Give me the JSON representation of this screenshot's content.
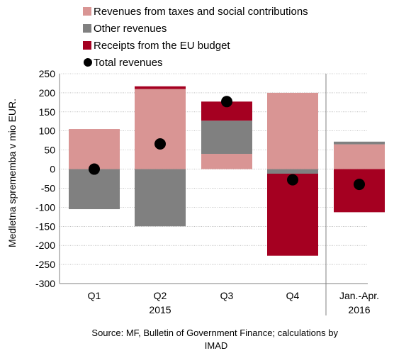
{
  "chart_data": {
    "type": "bar",
    "stacked": true,
    "categories": [
      "Q1",
      "Q2",
      "Q3",
      "Q4",
      "Jan.-Apr."
    ],
    "groups": [
      {
        "label": "2015",
        "categories": [
          "Q1",
          "Q2",
          "Q3",
          "Q4"
        ]
      },
      {
        "label": "2016",
        "categories": [
          "Jan.-Apr."
        ]
      }
    ],
    "series": [
      {
        "name": "Revenues from taxes and social contributions",
        "kind": "bar",
        "color": "#d99594",
        "values": [
          105,
          210,
          40,
          200,
          65
        ]
      },
      {
        "name": "Other revenues",
        "kind": "bar",
        "color": "#808080",
        "values": [
          -105,
          -150,
          87,
          -12,
          7
        ]
      },
      {
        "name": "Receipts from the EU budget",
        "kind": "bar",
        "color": "#a50021",
        "values": [
          0,
          7,
          50,
          -215,
          -113
        ]
      },
      {
        "name": "Total revenues",
        "kind": "marker",
        "color": "#000000",
        "values": [
          0,
          66,
          177,
          -28,
          -40
        ]
      }
    ],
    "ylabel": "Medletna sprememba v mio EUR.",
    "ylim": [
      -300,
      250
    ],
    "yticks": [
      -300,
      -250,
      -200,
      -150,
      -100,
      -50,
      0,
      50,
      100,
      150,
      200,
      250
    ],
    "grid": true,
    "legend_position": "top-left"
  },
  "source_note": "Source: MF, Bulletin of Government Finance; calculations by IMAD"
}
